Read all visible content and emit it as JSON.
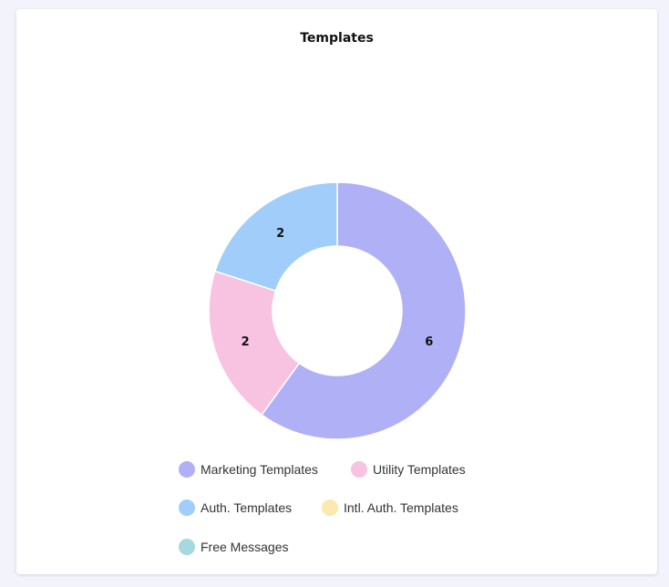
{
  "card": {
    "title": "Templates"
  },
  "chart_data": {
    "type": "pie",
    "title": "Templates",
    "donut": true,
    "legend_position": "bottom",
    "categories": [
      "Marketing Templates",
      "Utility Templates",
      "Auth. Templates",
      "Intl. Auth. Templates",
      "Free Messages"
    ],
    "values": [
      6,
      2,
      2,
      0,
      0
    ],
    "labels": [
      "6",
      "2",
      "2",
      "",
      ""
    ],
    "colors": [
      "#b0b0f7",
      "#f7c3e0",
      "#a0cdfa",
      "#fde8b0",
      "#a6d8e0"
    ]
  }
}
